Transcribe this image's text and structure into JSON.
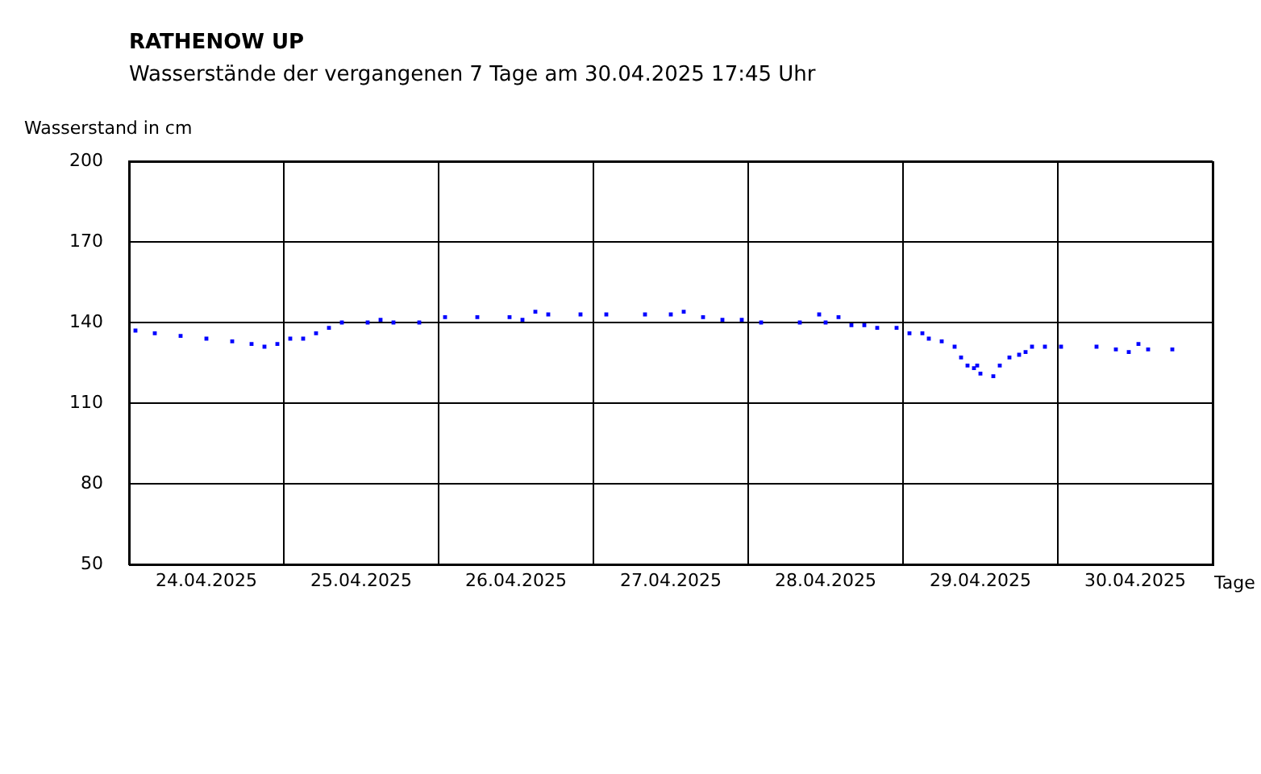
{
  "chart_data": {
    "type": "scatter",
    "title": "RATHENOW UP",
    "subtitle": "Wasserstände der vergangenen 7 Tage am 30.04.2025 17:45 Uhr",
    "ylabel": "Wasserstand in cm",
    "xlabel": "Tage",
    "x": [
      "2025-04-24T01:00",
      "2025-04-24T04:00",
      "2025-04-24T08:00",
      "2025-04-24T12:00",
      "2025-04-24T16:00",
      "2025-04-24T19:00",
      "2025-04-24T21:00",
      "2025-04-24T23:00",
      "2025-04-25T01:00",
      "2025-04-25T03:00",
      "2025-04-25T05:00",
      "2025-04-25T07:00",
      "2025-04-25T09:00",
      "2025-04-25T13:00",
      "2025-04-25T15:00",
      "2025-04-25T17:00",
      "2025-04-25T21:00",
      "2025-04-26T01:00",
      "2025-04-26T06:00",
      "2025-04-26T11:00",
      "2025-04-26T13:00",
      "2025-04-26T15:00",
      "2025-04-26T17:00",
      "2025-04-26T22:00",
      "2025-04-27T02:00",
      "2025-04-27T08:00",
      "2025-04-27T12:00",
      "2025-04-27T14:00",
      "2025-04-27T17:00",
      "2025-04-27T20:00",
      "2025-04-27T23:00",
      "2025-04-28T02:00",
      "2025-04-28T08:00",
      "2025-04-28T11:00",
      "2025-04-28T12:00",
      "2025-04-28T14:00",
      "2025-04-28T16:00",
      "2025-04-28T18:00",
      "2025-04-28T20:00",
      "2025-04-28T23:00",
      "2025-04-29T01:00",
      "2025-04-29T03:00",
      "2025-04-29T04:00",
      "2025-04-29T06:00",
      "2025-04-29T08:00",
      "2025-04-29T09:00",
      "2025-04-29T10:00",
      "2025-04-29T11:00",
      "2025-04-29T11:30",
      "2025-04-29T12:00",
      "2025-04-29T14:00",
      "2025-04-29T15:00",
      "2025-04-29T16:30",
      "2025-04-29T18:00",
      "2025-04-29T19:00",
      "2025-04-29T20:00",
      "2025-04-29T22:00",
      "2025-04-30T00:30",
      "2025-04-30T06:00",
      "2025-04-30T09:00",
      "2025-04-30T11:00",
      "2025-04-30T12:30",
      "2025-04-30T14:00",
      "2025-04-30T17:45"
    ],
    "series": [
      {
        "color": "#0000ff",
        "values": [
          137,
          136,
          135,
          134,
          133,
          132,
          131,
          132,
          134,
          134,
          136,
          138,
          140,
          140,
          141,
          140,
          140,
          142,
          142,
          142,
          141,
          144,
          143,
          143,
          143,
          143,
          143,
          144,
          142,
          141,
          141,
          140,
          140,
          143,
          140,
          142,
          139,
          139,
          138,
          138,
          136,
          136,
          134,
          133,
          131,
          127,
          124,
          123,
          124,
          121,
          120,
          124,
          127,
          128,
          129,
          131,
          131,
          131,
          131,
          130,
          129,
          132,
          130,
          130
        ]
      }
    ],
    "xlim": [
      "2025-04-24T00:00",
      "2025-05-01T00:00"
    ],
    "xticks": [
      {
        "value": "2025-04-24T00:00",
        "label": null
      },
      {
        "value": "2025-04-24T12:00",
        "label": "24.04.2025"
      },
      {
        "value": "2025-04-25T00:00",
        "label": null
      },
      {
        "value": "2025-04-25T12:00",
        "label": "25.04.2025"
      },
      {
        "value": "2025-04-26T00:00",
        "label": null
      },
      {
        "value": "2025-04-26T12:00",
        "label": "26.04.2025"
      },
      {
        "value": "2025-04-27T00:00",
        "label": null
      },
      {
        "value": "2025-04-27T12:00",
        "label": "27.04.2025"
      },
      {
        "value": "2025-04-28T00:00",
        "label": null
      },
      {
        "value": "2025-04-28T12:00",
        "label": "28.04.2025"
      },
      {
        "value": "2025-04-29T00:00",
        "label": null
      },
      {
        "value": "2025-04-29T12:00",
        "label": "29.04.2025"
      },
      {
        "value": "2025-04-30T00:00",
        "label": null
      },
      {
        "value": "2025-04-30T12:00",
        "label": "30.04.2025"
      },
      {
        "value": "2025-05-01T00:00",
        "label": null
      }
    ],
    "ylim": [
      50,
      200
    ],
    "yticks": [
      50,
      80,
      110,
      140,
      170,
      200
    ],
    "grid": true,
    "legend": false,
    "marker": "square"
  }
}
